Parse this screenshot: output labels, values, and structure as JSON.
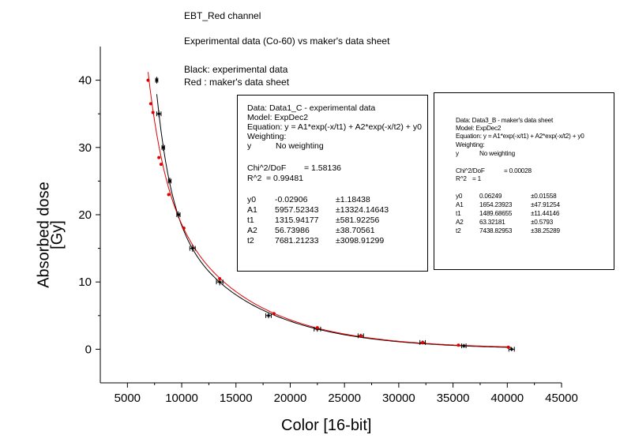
{
  "titles": {
    "line1": "EBT_Red channel",
    "line2": "Experimental data (Co-60) vs maker's data sheet",
    "line3": "Black:  experimental data",
    "line4": "Red : maker's data sheet"
  },
  "colors": {
    "experimental": "#000000",
    "datasheet": "#e00000"
  },
  "chart_data": {
    "type": "scatter",
    "xlabel": "Color [16-bit]",
    "ylabel_line1": "Absorbed dose",
    "ylabel_line2": "[Gy]",
    "xlim": [
      2500,
      45000
    ],
    "ylim": [
      -5,
      45
    ],
    "xticks": [
      5000,
      10000,
      15000,
      20000,
      25000,
      30000,
      35000,
      40000,
      45000
    ],
    "yticks": [
      0,
      10,
      20,
      30,
      40
    ],
    "series": [
      {
        "name": "experimental",
        "color": "#000000",
        "x": [
          7700,
          7900,
          8300,
          8900,
          9700,
          11000,
          13500,
          18000,
          22500,
          26500,
          32200,
          36000,
          40400
        ],
        "y": [
          40,
          35,
          30,
          25,
          20,
          15,
          10,
          5,
          3,
          2,
          1,
          0.5,
          0
        ],
        "xerr": [
          100,
          200,
          120,
          120,
          150,
          250,
          300,
          250,
          300,
          250,
          250,
          200,
          250
        ],
        "yerr": [
          0.5,
          0.5,
          0.5,
          0.5,
          0.5,
          0.5,
          0.5,
          0.4,
          0.4,
          0.3,
          0.3,
          0.3,
          0.3
        ],
        "fit": {
          "model": "ExpDec2",
          "y0": -0.02906,
          "A1": 5957.52343,
          "t1": 1315.94177,
          "A2": 56.73986,
          "t2": 7681.21233
        }
      },
      {
        "name": "maker's data sheet",
        "color": "#e00000",
        "x": [
          6900,
          7150,
          7350,
          7900,
          8100,
          8800,
          10200,
          13500,
          18500,
          22500,
          26500,
          32200,
          35500,
          40100
        ],
        "y": [
          40,
          36.5,
          35.2,
          28.5,
          27.5,
          23,
          18,
          10.5,
          5.3,
          3.2,
          2,
          1,
          0.6,
          0.3
        ],
        "fit": {
          "model": "ExpDec2",
          "y0": 0.06249,
          "A1": 1654.23923,
          "t1": 1489.68655,
          "A2": 63.32181,
          "t2": 7438.82953
        }
      }
    ]
  },
  "box1": {
    "line1": "Data: Data1_C - experimental data",
    "line2": "Model: ExpDec2",
    "line3": "Equation: y = A1*exp(-x/t1) + A2*exp(-x/t2) + y0",
    "line4": "Weighting:",
    "weight_y": "y",
    "weight_val": "No weighting",
    "chi_label": "Chi^2/DoF",
    "chi_val": "= 1.58136",
    "r2_label": "R^2",
    "r2_val": "=   0.99481",
    "params": [
      {
        "name": "y0",
        "value": "-0.02906",
        "err": "±1.18438"
      },
      {
        "name": "A1",
        "value": "5957.52343",
        "err": "±13324.14643"
      },
      {
        "name": "t1",
        "value": "1315.94177",
        "err": "±581.92256"
      },
      {
        "name": "A2",
        "value": "56.73986",
        "err": "±38.70561"
      },
      {
        "name": "t2",
        "value": "7681.21233",
        "err": "±3098.91299"
      }
    ]
  },
  "box2": {
    "line1": "Data: Data3_B - maker's data sheet",
    "line2": "Model: ExpDec2",
    "line3": "Equation: y = A1*exp(-x/t1) + A2*exp(-x/t2) + y0",
    "line4": "Weighting:",
    "weight_y": "y",
    "weight_val": "No weighting",
    "chi_label": "Chi^2/DoF",
    "chi_val": "= 0.00028",
    "r2_label": "R^2",
    "r2_val": "=  1",
    "params": [
      {
        "name": "y0",
        "value": "0.06249",
        "err": "±0.01558"
      },
      {
        "name": "A1",
        "value": "1654.23923",
        "err": "±47.91254"
      },
      {
        "name": "t1",
        "value": "1489.68655",
        "err": "±11.44146"
      },
      {
        "name": "A2",
        "value": "63.32181",
        "err": "±0.5793"
      },
      {
        "name": "t2",
        "value": "7438.82953",
        "err": "±38.25289"
      }
    ]
  }
}
